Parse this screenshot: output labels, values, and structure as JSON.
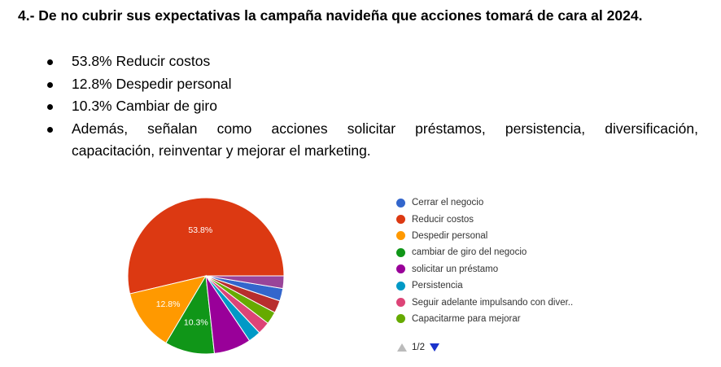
{
  "heading": "4.- De no cubrir sus expectativas la campaña navideña que acciones tomará de cara al 2024.",
  "bullets": [
    "53.8% Reducir costos",
    "12.8% Despedir personal",
    "10.3% Cambiar de giro"
  ],
  "bullet_long_line1": "Además, señalan como acciones solicitar préstamos, persistencia, diversificación,",
  "bullet_long_line2": "capacitación, reinventar y mejorar el marketing.",
  "chart_data": {
    "type": "pie",
    "slices": [
      {
        "label": "Reducir costos",
        "value": 53.8,
        "color": "#dc3912",
        "data_label": "53.8%"
      },
      {
        "label": "Despedir personal",
        "value": 12.8,
        "color": "#ff9900",
        "data_label": "12.8%"
      },
      {
        "label": "cambiar de giro del negocio",
        "value": 10.3,
        "color": "#109618",
        "data_label": "10.3%"
      },
      {
        "label": "solicitar un préstamo",
        "value": 7.7,
        "color": "#990099",
        "data_label": ""
      },
      {
        "label": "Persistencia",
        "value": 2.6,
        "color": "#0099c6",
        "data_label": ""
      },
      {
        "label": "Seguir adelante impulsando con diver..",
        "value": 2.6,
        "color": "#dd4477",
        "data_label": ""
      },
      {
        "label": "Capacitarme para mejorar",
        "value": 2.6,
        "color": "#66aa00",
        "data_label": ""
      },
      {
        "label": "",
        "value": 2.6,
        "color": "#b82e2e",
        "data_label": ""
      },
      {
        "label": "Cerrar el negocio",
        "value": 2.6,
        "color": "#3366cc",
        "data_label": ""
      },
      {
        "label": "",
        "value": 2.6,
        "color": "#994499",
        "data_label": ""
      }
    ],
    "legend": [
      {
        "label": "Cerrar el negocio",
        "color": "#3366cc"
      },
      {
        "label": "Reducir costos",
        "color": "#dc3912"
      },
      {
        "label": "Despedir personal",
        "color": "#ff9900"
      },
      {
        "label": "cambiar de giro del negocio",
        "color": "#109618"
      },
      {
        "label": "solicitar un préstamo",
        "color": "#990099"
      },
      {
        "label": "Persistencia",
        "color": "#0099c6"
      },
      {
        "label": "Seguir adelante impulsando con diver..",
        "color": "#dd4477"
      },
      {
        "label": "Capacitarme para mejorar",
        "color": "#66aa00"
      }
    ],
    "legend_placement": "right",
    "pager": "1/2"
  }
}
